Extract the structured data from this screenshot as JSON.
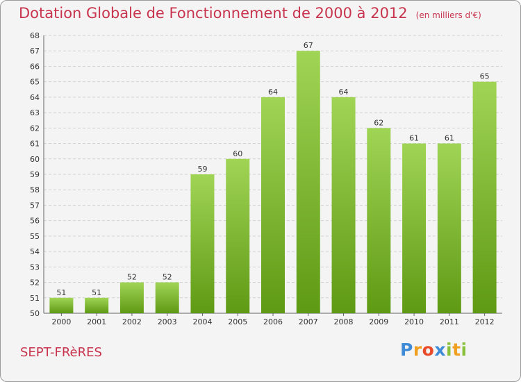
{
  "title": "Dotation Globale de Fonctionnement de 2000 à 2012",
  "unit": "(en milliers d'€)",
  "commune": "SEPT-FRèRES",
  "logo": {
    "letters": [
      "P",
      "r",
      "o",
      "x",
      "i",
      "t",
      "i"
    ],
    "colors": [
      "#3f8bd6",
      "#f0a020",
      "#e84a2a",
      "#3f8bd6",
      "#89c23a",
      "#f0a020",
      "#89c23a"
    ]
  },
  "colors": {
    "accent": "#c8344e",
    "bar_light": "#a0d455",
    "bar_dark": "#5f9a14"
  },
  "chart_data": {
    "type": "bar",
    "categories": [
      "2000",
      "2001",
      "2002",
      "2003",
      "2004",
      "2005",
      "2006",
      "2007",
      "2008",
      "2009",
      "2010",
      "2011",
      "2012"
    ],
    "values": [
      51,
      51,
      52,
      52,
      59,
      60,
      64,
      67,
      64,
      62,
      61,
      61,
      65
    ],
    "title": "Dotation Globale de Fonctionnement de 2000 à 2012",
    "xlabel": "",
    "ylabel": "",
    "ylim": [
      50,
      68
    ],
    "yticks": [
      50,
      51,
      52,
      53,
      54,
      55,
      56,
      57,
      58,
      59,
      60,
      61,
      62,
      63,
      64,
      65,
      66,
      67,
      68
    ],
    "grid": true,
    "legend": "none"
  }
}
